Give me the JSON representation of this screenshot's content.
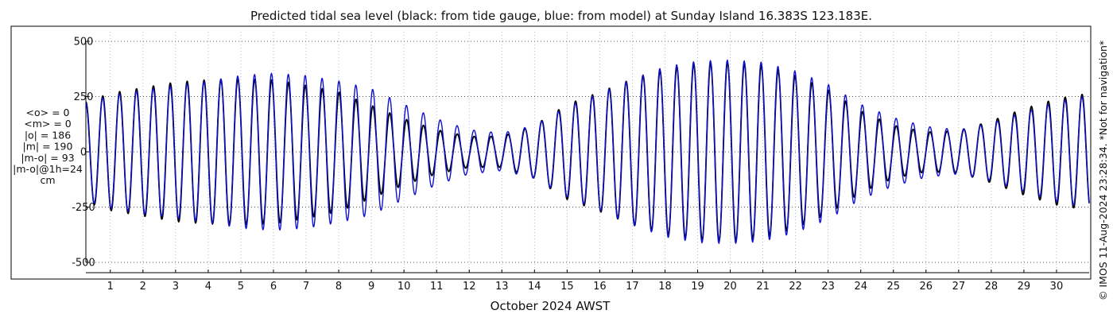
{
  "chart_data": {
    "type": "line",
    "title": "Predicted tidal sea level (black: from tide gauge, blue: from model) at Sunday Island 16.383S 123.183E.",
    "xlabel": "October 2024 AWST",
    "ylabel": "",
    "xlim": [
      0.25,
      31.0
    ],
    "ylim": [
      -500,
      500
    ],
    "x_ticks": [
      "1",
      "2",
      "3",
      "4",
      "5",
      "6",
      "7",
      "8",
      "9",
      "10",
      "11",
      "12",
      "13",
      "14",
      "15",
      "16",
      "17",
      "18",
      "19",
      "20",
      "21",
      "22",
      "23",
      "24",
      "25",
      "26",
      "27",
      "28",
      "29",
      "30"
    ],
    "y_ticks": [
      {
        "value": 500,
        "label": "500"
      },
      {
        "value": 250,
        "label": "250"
      },
      {
        "value": 0,
        "label": "0"
      },
      {
        "value": -250,
        "label": "-250"
      },
      {
        "value": -500,
        "label": "-500"
      }
    ],
    "grid": true,
    "tidal_period_days": 0.5175,
    "series": [
      {
        "name": "black: from tide gauge",
        "color": "#000000",
        "x": [
          0.25,
          1,
          2,
          3,
          4,
          5,
          6,
          7,
          8,
          9,
          10,
          11,
          12,
          13,
          14,
          15,
          16,
          17,
          18,
          19,
          20,
          21,
          22,
          23,
          24,
          25,
          26,
          27,
          28,
          29,
          30,
          31
        ],
        "amplitude": [
          225,
          265,
          290,
          315,
          325,
          330,
          325,
          300,
          270,
          210,
          150,
          100,
          70,
          70,
          120,
          215,
          270,
          330,
          375,
          400,
          405,
          390,
          345,
          280,
          185,
          120,
          90,
          95,
          140,
          195,
          240,
          265
        ]
      },
      {
        "name": "blue: from model",
        "color": "#1010d0",
        "x": [
          0.25,
          1,
          2,
          3,
          4,
          5,
          6,
          7,
          8,
          9,
          10,
          11,
          12,
          13,
          14,
          15,
          16,
          17,
          18,
          19,
          20,
          21,
          22,
          23,
          24,
          25,
          26,
          27,
          28,
          29,
          30,
          31
        ],
        "amplitude": [
          220,
          255,
          280,
          300,
          320,
          345,
          355,
          345,
          320,
          285,
          215,
          150,
          100,
          85,
          120,
          205,
          265,
          330,
          385,
          410,
          415,
          405,
          365,
          305,
          215,
          155,
          115,
          100,
          130,
          180,
          225,
          255
        ]
      }
    ]
  },
  "stats": {
    "lines": [
      "<o> = 0",
      "<m> = 0",
      "|o| = 186",
      "|m| = 190",
      "|m-o| = 93",
      "|m-o|@1h=24",
      "cm"
    ]
  },
  "credit": "© IMOS 11-Aug-2024 23:28:34. *Not for navigation*"
}
